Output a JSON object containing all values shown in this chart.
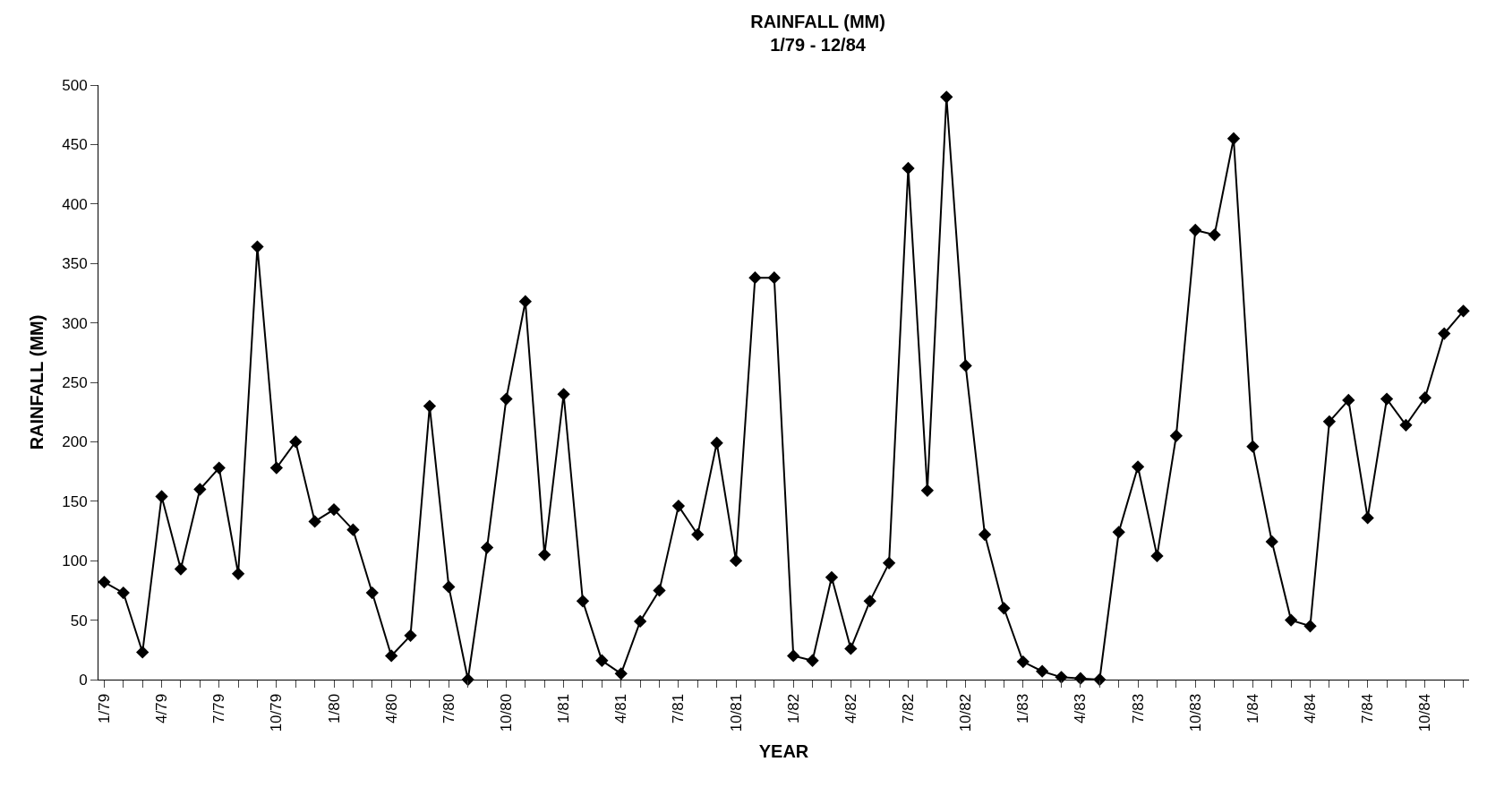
{
  "chart_data": {
    "type": "line",
    "title": "RAINFALL (MM)",
    "subtitle": "1/79 - 12/84",
    "xlabel": "YEAR",
    "ylabel": "RAINFALL (MM)",
    "categories": [
      "1/79",
      null,
      null,
      "4/79",
      null,
      null,
      "7/79",
      null,
      null,
      "10/79",
      null,
      null,
      "1/80",
      null,
      null,
      "4/80",
      null,
      null,
      "7/80",
      null,
      null,
      "10/80",
      null,
      null,
      "1/81",
      null,
      null,
      "4/81",
      null,
      null,
      "7/81",
      null,
      null,
      "10/81",
      null,
      null,
      "1/82",
      null,
      null,
      "4/82",
      null,
      null,
      "7/82",
      null,
      null,
      "10/82",
      null,
      null,
      "1/83",
      null,
      null,
      "4/83",
      null,
      null,
      "7/83",
      null,
      null,
      "10/83",
      null,
      null,
      "1/84",
      null,
      null,
      "4/84",
      null,
      null,
      "7/84",
      null,
      null,
      "10/84",
      null,
      null
    ],
    "series": [
      {
        "color": "#000000",
        "values": [
          82,
          73,
          23,
          154,
          93,
          160,
          178,
          89,
          364,
          178,
          200,
          133,
          143,
          126,
          73,
          20,
          37,
          230,
          78,
          0,
          111,
          236,
          318,
          105,
          240,
          66,
          16,
          5,
          49,
          75,
          146,
          122,
          199,
          100,
          338,
          338,
          20,
          16,
          86,
          26,
          66,
          98,
          430,
          159,
          490,
          264,
          122,
          60,
          15,
          7,
          2,
          1,
          0,
          124,
          179,
          104,
          205,
          378,
          374,
          455,
          196,
          116,
          50,
          45,
          217,
          235,
          136,
          236,
          214,
          237,
          291,
          310
        ]
      }
    ],
    "ylim": [
      0,
      500
    ],
    "yticks": [
      0,
      50,
      100,
      150,
      200,
      250,
      300,
      350,
      400,
      450,
      500
    ],
    "legend": false,
    "marker": "diamond",
    "line_style": "solid"
  }
}
